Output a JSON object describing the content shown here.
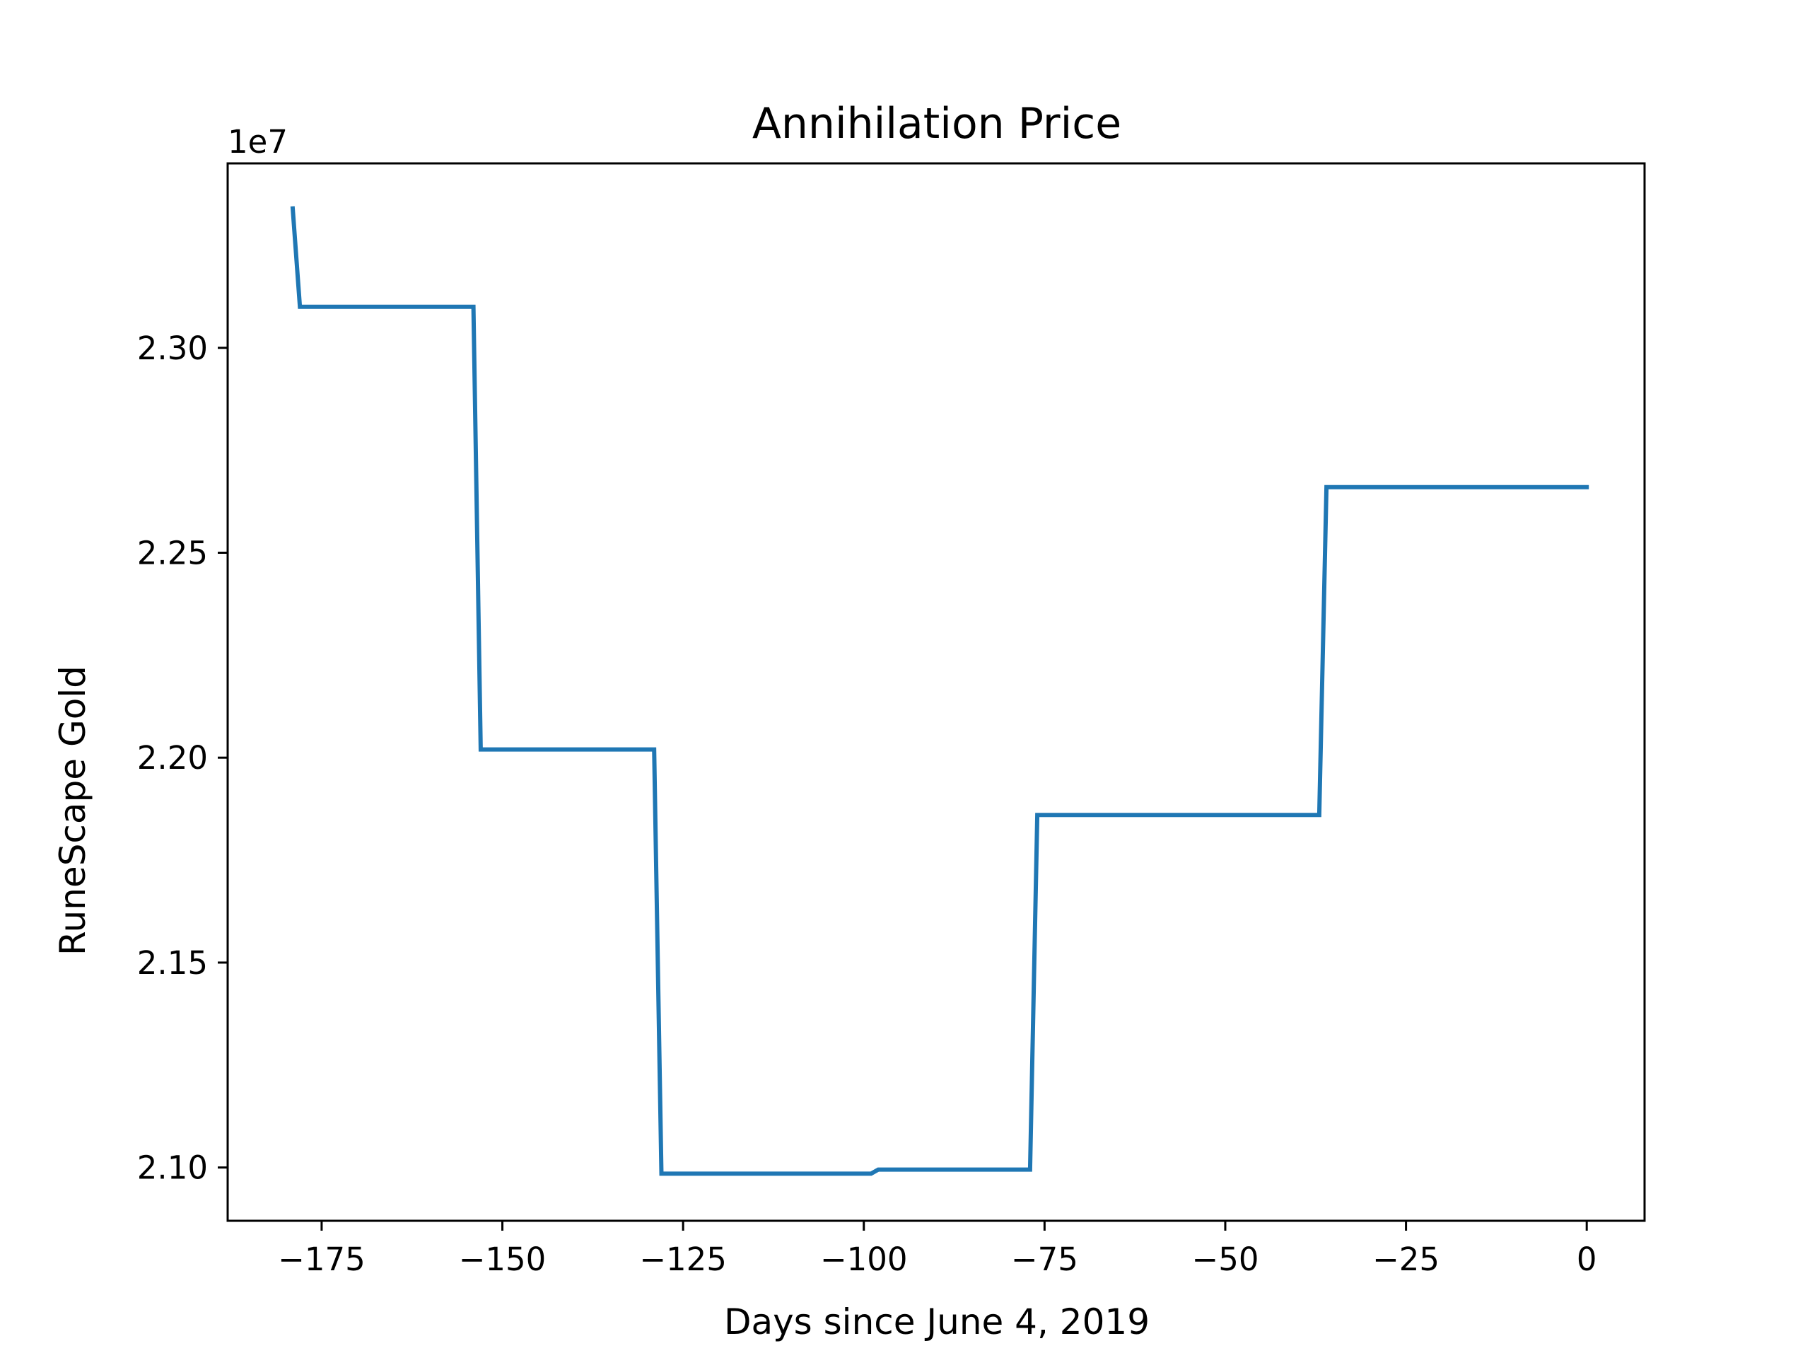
{
  "chart_data": {
    "type": "line",
    "title": "Annihilation Price",
    "xlabel": "Days since June 4, 2019",
    "ylabel": "RuneScape Gold",
    "y_offset_label": "1e7",
    "xlim": [
      -188,
      8
    ],
    "ylim": [
      20870000,
      23450000
    ],
    "x_ticks": [
      {
        "value": -175,
        "label": "−175"
      },
      {
        "value": -150,
        "label": "−150"
      },
      {
        "value": -125,
        "label": "−125"
      },
      {
        "value": -100,
        "label": "−100"
      },
      {
        "value": -75,
        "label": "−75"
      },
      {
        "value": -50,
        "label": "−50"
      },
      {
        "value": -25,
        "label": "−25"
      },
      {
        "value": 0,
        "label": "0"
      }
    ],
    "y_ticks": [
      {
        "value": 21000000,
        "label": "2.10"
      },
      {
        "value": 21500000,
        "label": "2.15"
      },
      {
        "value": 22000000,
        "label": "2.20"
      },
      {
        "value": 22500000,
        "label": "2.25"
      },
      {
        "value": 23000000,
        "label": "2.30"
      }
    ],
    "grid": false,
    "legend": "none",
    "series": [
      {
        "color": "#1f77b4",
        "x": [
          -179,
          -178,
          -154,
          -153,
          -129,
          -128,
          -99,
          -98,
          -77,
          -76,
          -37,
          -36,
          0
        ],
        "y": [
          23340000,
          23100000,
          23100000,
          22020000,
          22020000,
          20985000,
          20985000,
          20995000,
          20995000,
          21860000,
          21860000,
          22660000,
          22660000
        ]
      }
    ]
  }
}
